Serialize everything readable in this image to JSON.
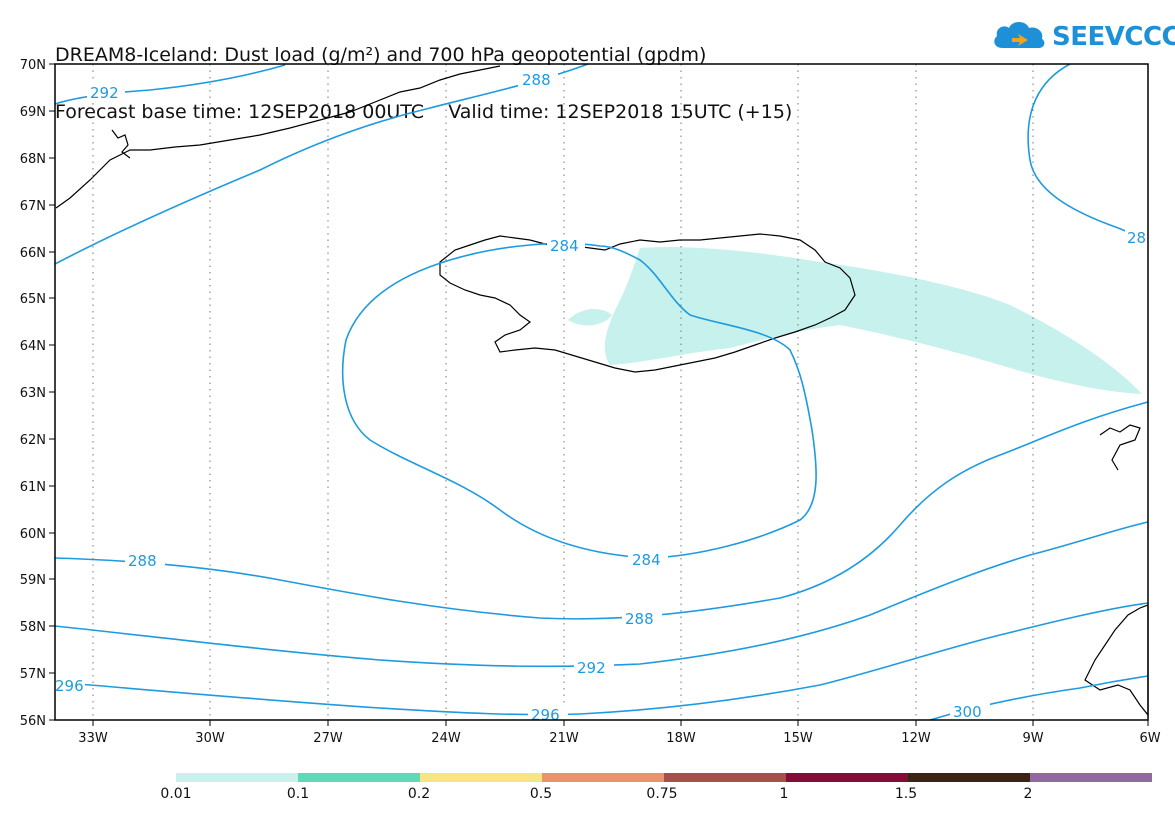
{
  "title": {
    "line1": "DREAM8-Iceland: Dust load (g/m²) and 700 hPa geopotential (gpdm)",
    "line2": "Forecast base time: 12SEP2018 00UTC    Valid time: 12SEP2018 15UTC (+15)"
  },
  "logo": {
    "text": "SEEVCCC",
    "icon": "cloud-logo-icon",
    "color": "#1E90D8"
  },
  "map": {
    "lat_labels": [
      "70N",
      "69N",
      "68N",
      "67N",
      "66N",
      "65N",
      "64N",
      "63N",
      "62N",
      "61N",
      "60N",
      "59N",
      "58N",
      "57N",
      "56N"
    ],
    "lon_labels": [
      "33W",
      "30W",
      "27W",
      "24W",
      "21W",
      "18W",
      "15W",
      "12W",
      "9W",
      "6W"
    ],
    "lat_range": [
      56,
      70
    ],
    "lon_range": [
      -34.3,
      -6
    ],
    "grid": "dotted",
    "contour_color": "#1E9BE0",
    "dust_fill_color": "#C6F1EC"
  },
  "contours": {
    "label_292_top": "292",
    "label_288_top": "288",
    "label_28_right": "28",
    "label_284_north": "284",
    "label_284_south": "284",
    "label_288_west": "288",
    "label_288_south": "288",
    "label_292_south": "292",
    "label_296_west": "296",
    "label_296_south": "296",
    "label_300": "300"
  },
  "legend": {
    "colors": [
      "#C6F1EC",
      "#5EDBB6",
      "#F6E582",
      "#E8936A",
      "#A5504B",
      "#820D37",
      "#3A2416",
      "#8E6A9F"
    ],
    "labels": [
      "0.01",
      "0.1",
      "0.2",
      "0.5",
      "0.75",
      "1",
      "1.5",
      "2"
    ]
  }
}
